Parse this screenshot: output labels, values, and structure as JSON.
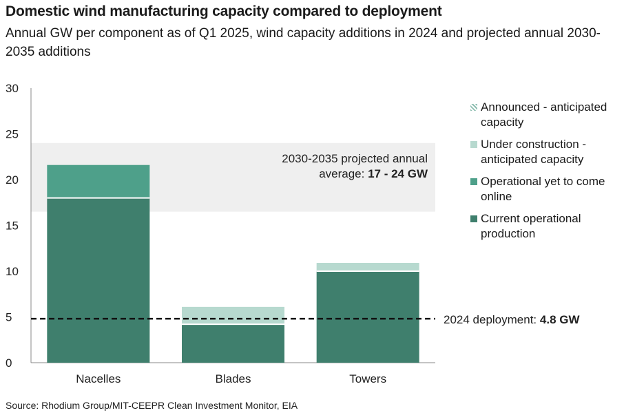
{
  "title": "Domestic wind manufacturing capacity compared to deployment",
  "subtitle": "Annual GW per component as of Q1 2025, wind capacity additions in 2024 and projected annual 2030-2035 additions",
  "source": "Source: Rhodium Group/MIT-CEEPR Clean Investment Monitor, EIA",
  "colors": {
    "current": "#3f7f6d",
    "operational_ytc": "#4ea08a",
    "under_construction": "#b7d9cf",
    "announced": "#b7d9cf",
    "band": "#efefef"
  },
  "legend": [
    {
      "label": "Announced - anticipated capacity",
      "icon": "hatched-swatch-icon"
    },
    {
      "label": "Under construction - anticipated capacity",
      "icon": "light-teal-swatch-icon"
    },
    {
      "label": "Operational yet to come online",
      "icon": "mid-teal-swatch-icon"
    },
    {
      "label": "Current operational production",
      "icon": "dark-teal-swatch-icon"
    }
  ],
  "annotations": {
    "band_text_1": "2030-2035 projected annual",
    "band_text_2_prefix": "average: ",
    "band_text_2_bold": "17 - 24 GW",
    "deploy_prefix": "2024 deployment: ",
    "deploy_bold": "4.8 GW"
  },
  "chart_data": {
    "type": "bar",
    "stacked": true,
    "categories": [
      "Nacelles",
      "Blades",
      "Towers"
    ],
    "series": [
      {
        "name": "Current operational production",
        "values": [
          18,
          4.2,
          10
        ]
      },
      {
        "name": "Operational yet to come online",
        "values": [
          3.6,
          0,
          0
        ]
      },
      {
        "name": "Under construction - anticipated capacity",
        "values": [
          0,
          1.9,
          0.9
        ]
      },
      {
        "name": "Announced - anticipated capacity",
        "values": [
          0,
          0,
          0
        ]
      }
    ],
    "ylim": [
      0,
      30
    ],
    "yticks": [
      0,
      5,
      10,
      15,
      20,
      25,
      30
    ],
    "reference_band": [
      16.5,
      24
    ],
    "reference_line": 4.8,
    "grid": false,
    "legend_position": "right"
  }
}
